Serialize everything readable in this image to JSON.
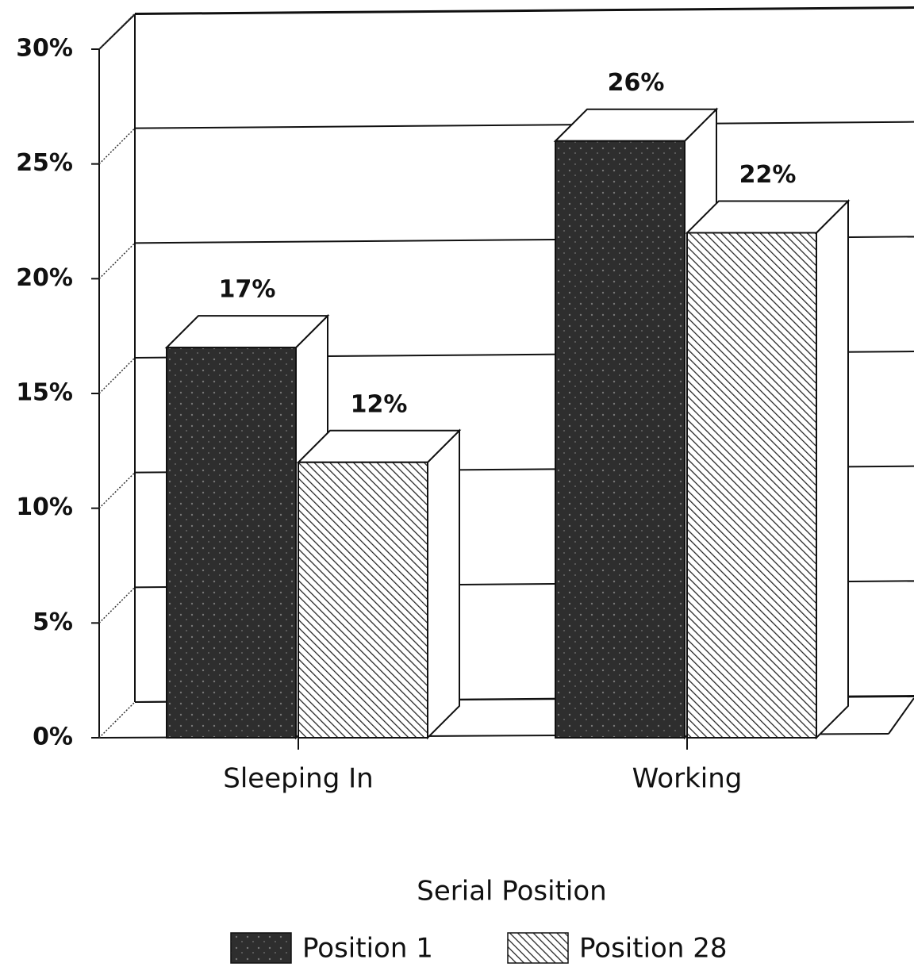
{
  "chart_data": {
    "type": "bar3d",
    "categories": [
      "Sleeping In",
      "Working"
    ],
    "series": [
      {
        "name": "Position 1",
        "color": "#2e2e2e",
        "pattern": "dots",
        "values": [
          17,
          26
        ],
        "value_labels": [
          "17%",
          "26%"
        ]
      },
      {
        "name": "Position 28",
        "color": "#ffffff",
        "pattern": "hatch",
        "values": [
          12,
          22
        ],
        "value_labels": [
          "12%",
          "22%"
        ]
      }
    ],
    "ylim": [
      0,
      30
    ],
    "yticks": [
      {
        "value": 0,
        "label": "0%"
      },
      {
        "value": 5,
        "label": "5%"
      },
      {
        "value": 10,
        "label": "10%"
      },
      {
        "value": 15,
        "label": "15%"
      },
      {
        "value": 20,
        "label": "20%"
      },
      {
        "value": 25,
        "label": "25%"
      },
      {
        "value": 30,
        "label": "30%"
      }
    ],
    "grid": true,
    "legend_title": "Serial Position",
    "legend": "bottom"
  }
}
